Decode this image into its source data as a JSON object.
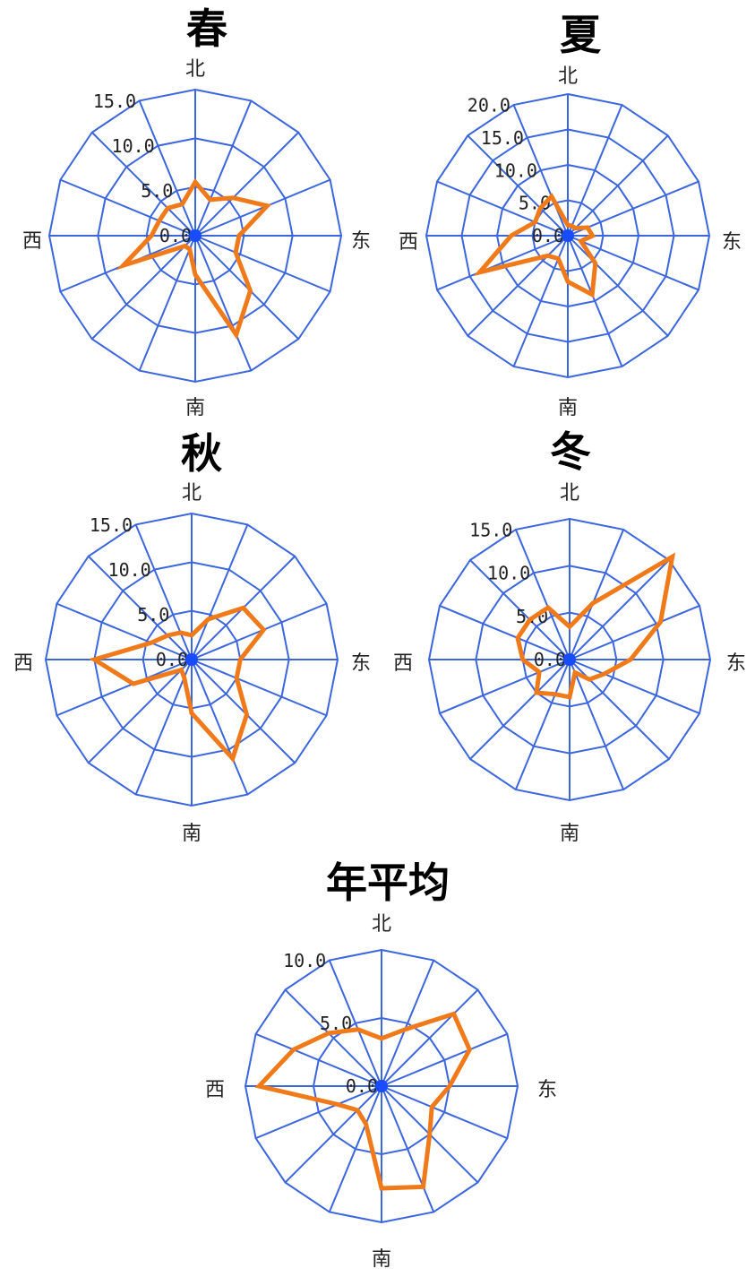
{
  "colors": {
    "grid": "#3b66dd",
    "series": "#f07a1a",
    "center": "#1a4cff"
  },
  "chart_data": [
    {
      "type": "radar",
      "title": "春",
      "directions": {
        "north": "北",
        "east": "东",
        "south": "南",
        "west": "西"
      },
      "ticks": [
        "0.0",
        "5.0",
        "10.0",
        "15.0"
      ],
      "rmax": 15,
      "values": [
        5.5,
        4.0,
        5.5,
        8.0,
        4.5,
        4.5,
        8.0,
        11.0,
        4.0,
        1.5,
        1.5,
        8.0,
        4.5,
        4.0,
        4.0,
        3.5
      ]
    },
    {
      "type": "radar",
      "title": "夏",
      "directions": {
        "north": "北",
        "east": "东",
        "south": "南",
        "west": "西"
      },
      "ticks": [
        "0.0",
        "5.0",
        "10.0",
        "15.0",
        "20.0"
      ],
      "rmax": 20,
      "values": [
        1.5,
        1.5,
        1.5,
        3.0,
        3.5,
        2.0,
        5.5,
        9.0,
        6.5,
        3.5,
        4.0,
        13.5,
        8.0,
        5.0,
        5.5,
        6.0
      ]
    },
    {
      "type": "radar",
      "title": "秋",
      "directions": {
        "north": "北",
        "east": "东",
        "south": "南",
        "west": "西"
      },
      "ticks": [
        "0.0",
        "5.0",
        "10.0",
        "15.0"
      ],
      "rmax": 15,
      "values": [
        2.5,
        4.5,
        7.5,
        8.0,
        5.0,
        5.0,
        8.0,
        11.0,
        5.5,
        2.0,
        1.5,
        6.5,
        10.0,
        4.5,
        3.5,
        3.0
      ]
    },
    {
      "type": "radar",
      "title": "冬",
      "directions": {
        "north": "北",
        "east": "东",
        "south": "南",
        "west": "西"
      },
      "ticks": [
        "0.0",
        "5.0",
        "10.0",
        "15.0"
      ],
      "rmax": 15,
      "values": [
        3.5,
        6.5,
        15.5,
        10.5,
        6.5,
        4.0,
        3.0,
        1.5,
        4.0,
        4.0,
        5.0,
        3.5,
        5.0,
        6.0,
        6.0,
        6.0
      ]
    },
    {
      "type": "radar",
      "title": "年平均",
      "directions": {
        "north": "北",
        "east": "东",
        "south": "南",
        "west": "西"
      },
      "ticks": [
        "0.0",
        "5.0",
        "10.0"
      ],
      "rmax": 10,
      "values": [
        3.5,
        4.5,
        7.5,
        7.0,
        5.0,
        4.0,
        5.0,
        8.0,
        7.5,
        3.0,
        2.5,
        3.5,
        9.0,
        7.0,
        5.5,
        4.5
      ]
    }
  ]
}
